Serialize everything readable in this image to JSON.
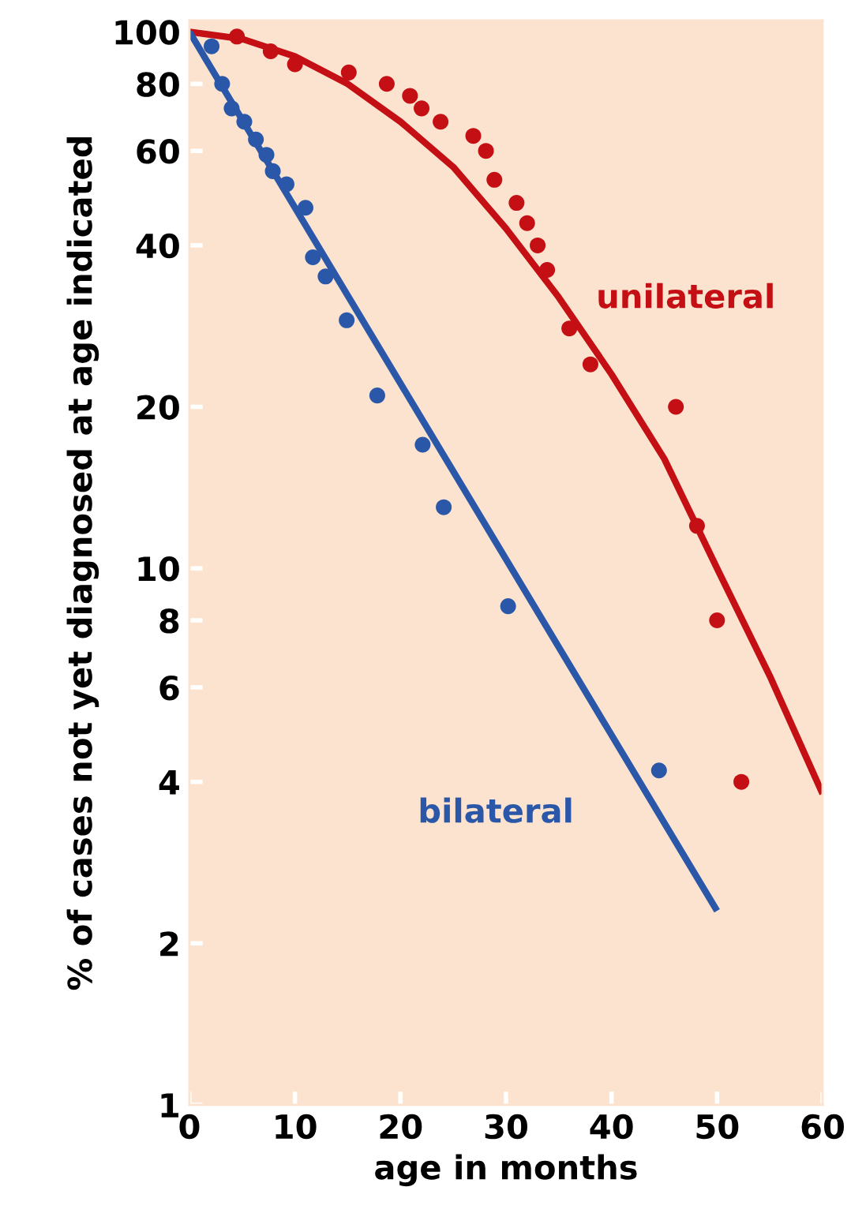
{
  "chart_data": {
    "type": "scatter",
    "xlabel": "age in months",
    "ylabel": "% of cases not yet diagnosed at age indicated",
    "log": "y",
    "xlim": [
      0,
      60
    ],
    "xticks": [
      0,
      10,
      20,
      30,
      40,
      50,
      60
    ],
    "ylim": [
      1,
      105
    ],
    "yticks": [
      1,
      2,
      4,
      6,
      8,
      10,
      20,
      40,
      60,
      80,
      100
    ],
    "grid": false,
    "legend": false,
    "marker": "circle",
    "series": [
      {
        "color": "#c40f14",
        "x": [
          4.5,
          7.7,
          10,
          15.1,
          18.7,
          20.9,
          22,
          23.8,
          26.9,
          28.1,
          28.9,
          31,
          32,
          33,
          33.9,
          36,
          38,
          46.1,
          48.1,
          50,
          52.3
        ],
        "values": [
          98,
          92,
          87,
          84,
          80,
          76,
          72,
          68,
          64,
          60,
          53,
          48,
          44,
          40,
          36,
          28,
          24,
          20,
          12,
          8,
          4
        ]
      },
      {
        "type": "line",
        "name": "unilateral",
        "color": "#c40f14",
        "line_style": "solid",
        "marker": "none",
        "x": [
          0,
          5,
          10,
          15,
          20,
          25,
          30,
          35,
          40,
          45,
          50,
          55,
          60
        ],
        "values": [
          100,
          97,
          90,
          80,
          68,
          56,
          43,
          32,
          23,
          16,
          10,
          6.3,
          3.8
        ]
      },
      {
        "color": "#2a57a8",
        "x": [
          2.1,
          3.1,
          4,
          5.2,
          6.3,
          7.3,
          7.9,
          9.2,
          11,
          11.7,
          12.9,
          14.9,
          17.8,
          22.1,
          24.1,
          30.2,
          44.5
        ],
        "values": [
          94,
          80,
          72,
          68,
          63,
          59,
          55,
          52,
          47,
          38,
          35,
          29,
          21,
          17,
          13,
          8.5,
          4.2
        ]
      },
      {
        "type": "line",
        "name": "bilateral",
        "color": "#2a57a8",
        "line_style": "solid",
        "marker": "none",
        "x": [
          0,
          50
        ],
        "values": [
          100,
          2.3
        ]
      }
    ]
  }
}
